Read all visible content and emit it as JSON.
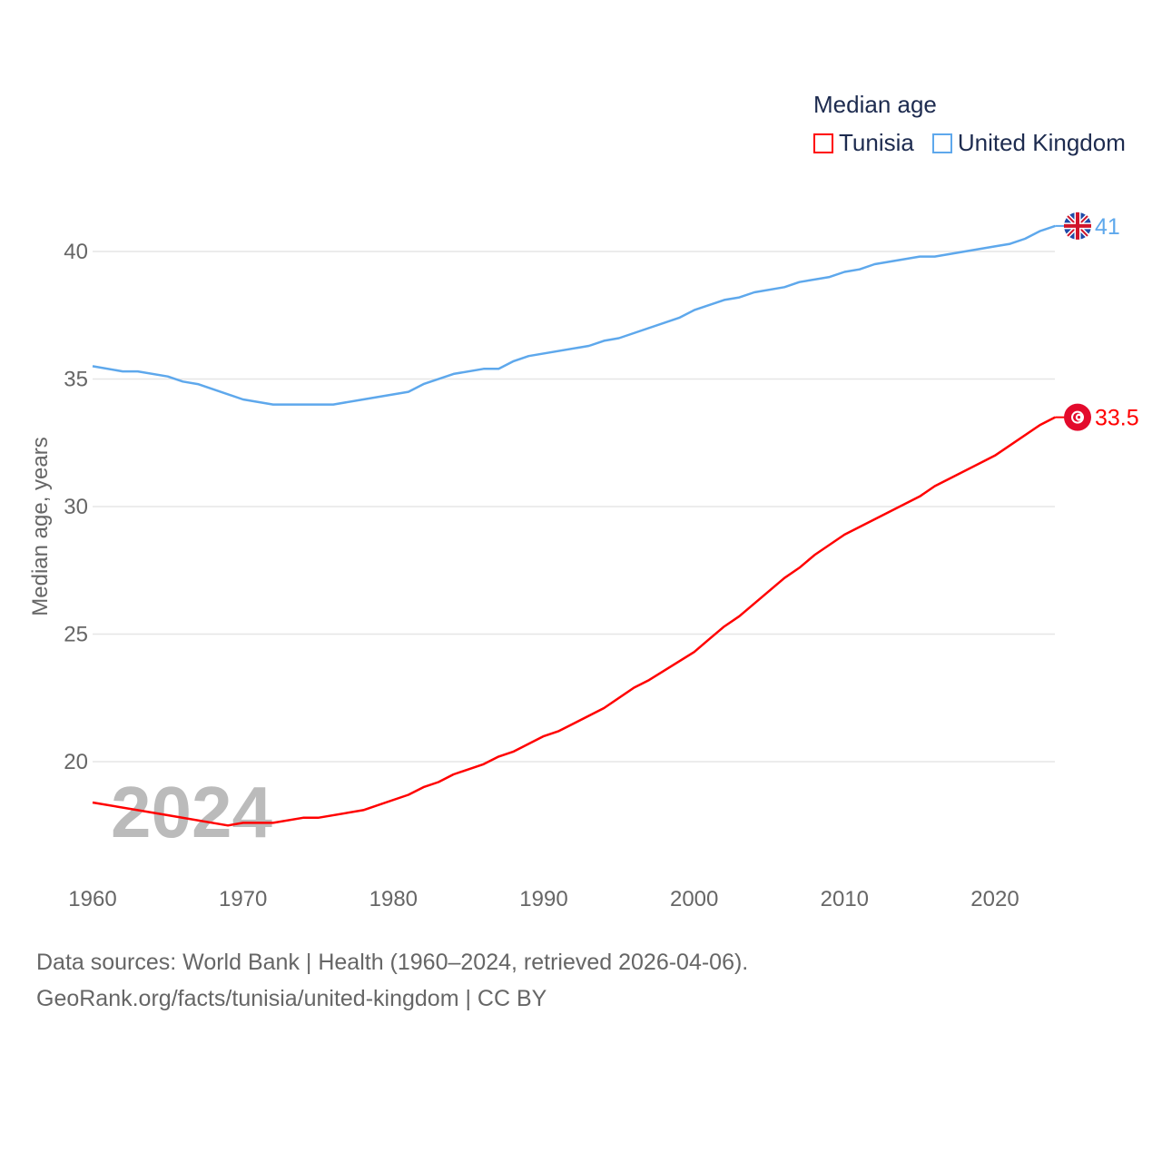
{
  "chart_data": {
    "type": "line",
    "legend_title": "Median age",
    "ylabel": "Median age, years",
    "xlabel": "",
    "year_watermark": "2024",
    "x_ticks": [
      1960,
      1970,
      1980,
      1990,
      2000,
      2010,
      2020
    ],
    "y_ticks": [
      20,
      25,
      30,
      35,
      40
    ],
    "xlim": [
      1960,
      2024
    ],
    "grid": true,
    "legend_position": "top-right",
    "series": [
      {
        "name": "Tunisia",
        "color": "#ff0000",
        "end_label": "33.5",
        "icon": "tunisia-flag-icon",
        "points": [
          [
            1960,
            18.4
          ],
          [
            1965,
            17.9
          ],
          [
            1969,
            17.5
          ],
          [
            1970,
            17.6
          ],
          [
            1972,
            17.6
          ],
          [
            1974,
            17.8
          ],
          [
            1975,
            17.8
          ],
          [
            1978,
            18.1
          ],
          [
            1981,
            18.7
          ],
          [
            1982,
            19.0
          ],
          [
            1983,
            19.2
          ],
          [
            1984,
            19.5
          ],
          [
            1986,
            19.9
          ],
          [
            1987,
            20.2
          ],
          [
            1988,
            20.4
          ],
          [
            1990,
            21.0
          ],
          [
            1991,
            21.2
          ],
          [
            1994,
            22.1
          ],
          [
            1996,
            22.9
          ],
          [
            1997,
            23.2
          ],
          [
            2000,
            24.3
          ],
          [
            2001,
            24.8
          ],
          [
            2002,
            25.3
          ],
          [
            2003,
            25.7
          ],
          [
            2006,
            27.2
          ],
          [
            2007,
            27.6
          ],
          [
            2008,
            28.1
          ],
          [
            2010,
            28.9
          ],
          [
            2015,
            30.4
          ],
          [
            2016,
            30.8
          ],
          [
            2020,
            32.0
          ],
          [
            2023,
            33.2
          ],
          [
            2024,
            33.5
          ]
        ]
      },
      {
        "name": "United Kingdom",
        "color": "#5ea8ec",
        "end_label": "41",
        "icon": "uk-flag-icon",
        "points": [
          [
            1960,
            35.5
          ],
          [
            1962,
            35.3
          ],
          [
            1963,
            35.3
          ],
          [
            1965,
            35.1
          ],
          [
            1966,
            34.9
          ],
          [
            1967,
            34.8
          ],
          [
            1970,
            34.2
          ],
          [
            1972,
            34.0
          ],
          [
            1976,
            34.0
          ],
          [
            1978,
            34.2
          ],
          [
            1981,
            34.5
          ],
          [
            1982,
            34.8
          ],
          [
            1984,
            35.2
          ],
          [
            1986,
            35.4
          ],
          [
            1987,
            35.4
          ],
          [
            1988,
            35.7
          ],
          [
            1989,
            35.9
          ],
          [
            1993,
            36.3
          ],
          [
            1994,
            36.5
          ],
          [
            1995,
            36.6
          ],
          [
            1999,
            37.4
          ],
          [
            2000,
            37.7
          ],
          [
            2002,
            38.1
          ],
          [
            2003,
            38.2
          ],
          [
            2004,
            38.4
          ],
          [
            2006,
            38.6
          ],
          [
            2007,
            38.8
          ],
          [
            2009,
            39.0
          ],
          [
            2010,
            39.2
          ],
          [
            2011,
            39.3
          ],
          [
            2012,
            39.5
          ],
          [
            2015,
            39.8
          ],
          [
            2016,
            39.8
          ],
          [
            2020,
            40.2
          ],
          [
            2021,
            40.3
          ],
          [
            2022,
            40.5
          ],
          [
            2023,
            40.8
          ],
          [
            2024,
            41.0
          ]
        ]
      }
    ]
  },
  "footer": {
    "line1": "Data sources: World Bank | Health (1960–2024, retrieved 2026-04-06).",
    "line2": "GeoRank.org/facts/tunisia/united-kingdom | CC BY"
  }
}
